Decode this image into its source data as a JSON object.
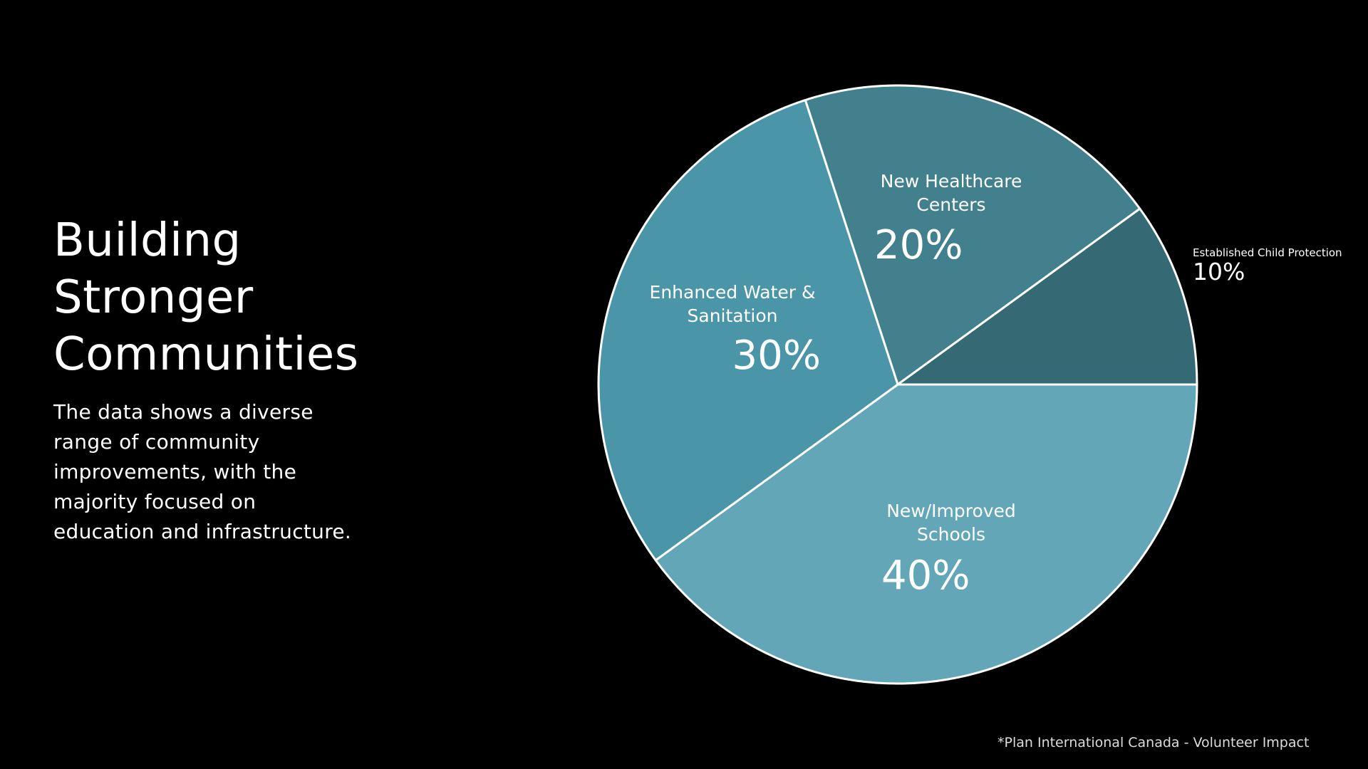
{
  "slide": {
    "title_lines": [
      "Building",
      "Stronger",
      "Communities"
    ],
    "description_lines": [
      "The data shows a diverse",
      "range of community",
      "improvements, with the",
      "majority focused on",
      "education and infrastructure."
    ],
    "footnote": "*Plan International Canada - Volunteer Impact"
  },
  "chart_data": {
    "type": "pie",
    "title": "",
    "slices": [
      {
        "name_lines": [
          "New Healthcare",
          "Centers"
        ],
        "value": 20,
        "value_label": "20%",
        "color": "#42808E"
      },
      {
        "name_lines": [
          "Established Child Protection"
        ],
        "value": 10,
        "value_label": "10%",
        "color": "#356A75"
      },
      {
        "name_lines": [
          "New/Improved",
          "Schools"
        ],
        "value": 40,
        "value_label": "40%",
        "color": "#62A6B8"
      },
      {
        "name_lines": [
          "Enhanced Water &",
          "Sanitation"
        ],
        "value": 30,
        "value_label": "30%",
        "color": "#4B95A9"
      }
    ],
    "start_angle_deg": -108,
    "direction": "clockwise",
    "slice_border_color": "#FFFFFF"
  }
}
